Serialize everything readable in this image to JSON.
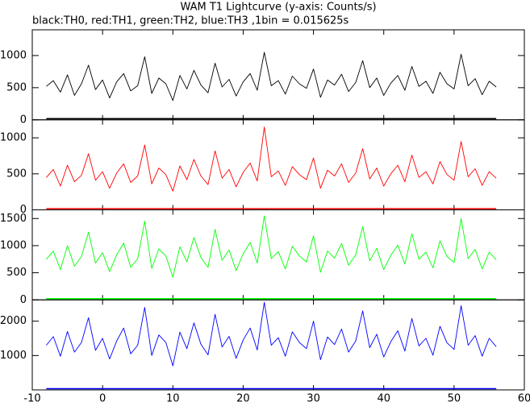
{
  "chart_data": [
    {
      "type": "line",
      "title": "WAM T1 Lightcurve (y-axis: Counts/s)",
      "subtitle": "black:TH0, red:TH1, green:TH2, blue:TH3 ,1bin = 0.015625s",
      "color": "#000000",
      "x": [
        -8,
        -7,
        -6,
        -5,
        -4,
        -3,
        -2,
        -1,
        0,
        1,
        2,
        3,
        4,
        5,
        6,
        7,
        8,
        9,
        10,
        11,
        12,
        13,
        14,
        15,
        16,
        17,
        18,
        19,
        20,
        21,
        22,
        23,
        24,
        25,
        26,
        27,
        28,
        29,
        30,
        31,
        32,
        33,
        34,
        35,
        36,
        37,
        38,
        39,
        40,
        41,
        42,
        43,
        44,
        45,
        46,
        47,
        48,
        49,
        50,
        51,
        52,
        53,
        54,
        55,
        56
      ],
      "values": [
        520,
        610,
        430,
        700,
        380,
        560,
        850,
        470,
        620,
        340,
        590,
        720,
        450,
        530,
        980,
        410,
        650,
        560,
        300,
        690,
        480,
        770,
        540,
        420,
        880,
        510,
        630,
        370,
        590,
        720,
        460,
        1050,
        530,
        610,
        400,
        680,
        560,
        490,
        790,
        350,
        620,
        540,
        710,
        440,
        580,
        920,
        500,
        650,
        380,
        570,
        690,
        460,
        830,
        520,
        600,
        410,
        740,
        560,
        480,
        1020,
        530,
        640,
        390,
        600,
        510
      ],
      "ylim": [
        0,
        1400
      ],
      "yticks": [
        0,
        500,
        1000
      ]
    },
    {
      "type": "line",
      "color": "#ff0000",
      "x": [
        -8,
        -7,
        -6,
        -5,
        -4,
        -3,
        -2,
        -1,
        0,
        1,
        2,
        3,
        4,
        5,
        6,
        7,
        8,
        9,
        10,
        11,
        12,
        13,
        14,
        15,
        16,
        17,
        18,
        19,
        20,
        21,
        22,
        23,
        24,
        25,
        26,
        27,
        28,
        29,
        30,
        31,
        32,
        33,
        34,
        35,
        36,
        37,
        38,
        39,
        40,
        41,
        42,
        43,
        44,
        45,
        46,
        47,
        48,
        49,
        50,
        51,
        52,
        53,
        54,
        55,
        56
      ],
      "values": [
        450,
        560,
        330,
        620,
        390,
        480,
        780,
        410,
        530,
        300,
        510,
        640,
        380,
        470,
        900,
        360,
        580,
        490,
        260,
        610,
        420,
        700,
        470,
        350,
        820,
        440,
        560,
        320,
        520,
        650,
        400,
        1150,
        460,
        540,
        340,
        600,
        490,
        420,
        720,
        300,
        550,
        470,
        640,
        380,
        510,
        850,
        430,
        580,
        330,
        500,
        620,
        390,
        760,
        450,
        530,
        360,
        670,
        490,
        410,
        950,
        460,
        570,
        340,
        530,
        440
      ],
      "ylim": [
        0,
        1250
      ],
      "yticks": [
        0,
        500,
        1000
      ]
    },
    {
      "type": "line",
      "color": "#00ff00",
      "x": [
        -8,
        -7,
        -6,
        -5,
        -4,
        -3,
        -2,
        -1,
        0,
        1,
        2,
        3,
        4,
        5,
        6,
        7,
        8,
        9,
        10,
        11,
        12,
        13,
        14,
        15,
        16,
        17,
        18,
        19,
        20,
        21,
        22,
        23,
        24,
        25,
        26,
        27,
        28,
        29,
        30,
        31,
        32,
        33,
        34,
        35,
        36,
        37,
        38,
        39,
        40,
        41,
        42,
        43,
        44,
        45,
        46,
        47,
        48,
        49,
        50,
        51,
        52,
        53,
        54,
        55,
        56
      ],
      "values": [
        750,
        900,
        560,
        1000,
        620,
        800,
        1250,
        680,
        870,
        520,
        830,
        1050,
        600,
        760,
        1450,
        580,
        940,
        810,
        420,
        980,
        700,
        1150,
        780,
        600,
        1300,
        730,
        920,
        540,
        850,
        1060,
        680,
        1550,
        760,
        890,
        570,
        990,
        810,
        700,
        1180,
        510,
        900,
        770,
        1040,
        640,
        830,
        1350,
        720,
        950,
        560,
        820,
        1010,
        660,
        1220,
        750,
        880,
        590,
        1090,
        800,
        690,
        1500,
        760,
        930,
        570,
        880,
        740
      ],
      "ylim": [
        0,
        1660
      ],
      "yticks": [
        0,
        500,
        1000,
        1500
      ]
    },
    {
      "type": "line",
      "color": "#0000ff",
      "x": [
        -8,
        -7,
        -6,
        -5,
        -4,
        -3,
        -2,
        -1,
        0,
        1,
        2,
        3,
        4,
        5,
        6,
        7,
        8,
        9,
        10,
        11,
        12,
        13,
        14,
        15,
        16,
        17,
        18,
        19,
        20,
        21,
        22,
        23,
        24,
        25,
        26,
        27,
        28,
        29,
        30,
        31,
        32,
        33,
        34,
        35,
        36,
        37,
        38,
        39,
        40,
        41,
        42,
        43,
        44,
        45,
        46,
        47,
        48,
        49,
        50,
        51,
        52,
        53,
        54,
        55,
        56
      ],
      "values": [
        1300,
        1550,
        980,
        1700,
        1100,
        1380,
        2100,
        1150,
        1500,
        900,
        1420,
        1800,
        1050,
        1300,
        2400,
        1000,
        1600,
        1380,
        700,
        1680,
        1200,
        1950,
        1330,
        1020,
        2200,
        1250,
        1560,
        920,
        1450,
        1800,
        1160,
        2550,
        1300,
        1520,
        980,
        1690,
        1380,
        1200,
        2000,
        880,
        1540,
        1320,
        1770,
        1100,
        1420,
        2300,
        1230,
        1620,
        960,
        1400,
        1720,
        1130,
        2080,
        1280,
        1500,
        1010,
        1850,
        1370,
        1180,
        2450,
        1300,
        1580,
        980,
        1500,
        1260
      ],
      "ylim": [
        0,
        2620
      ],
      "yticks": [
        1000,
        2000
      ],
      "xlim": [
        -10,
        60
      ],
      "xticks": [
        -10,
        0,
        10,
        20,
        30,
        40,
        50,
        60
      ]
    }
  ]
}
